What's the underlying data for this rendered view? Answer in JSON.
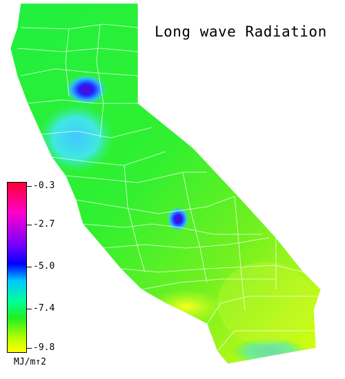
{
  "map": {
    "title": "Long wave Radiation",
    "region": "California"
  },
  "legend": {
    "unit": "MJ/m↑2",
    "ticks": [
      "-0.3",
      "-2.7",
      "-5.0",
      "-7.4",
      "-9.8"
    ],
    "colors": {
      "max": "#ff0033",
      "magenta": "#ff00cc",
      "blue": "#0000ff",
      "cyan": "#00c8ff",
      "green": "#22ee22",
      "min": "#ffff00"
    }
  }
}
